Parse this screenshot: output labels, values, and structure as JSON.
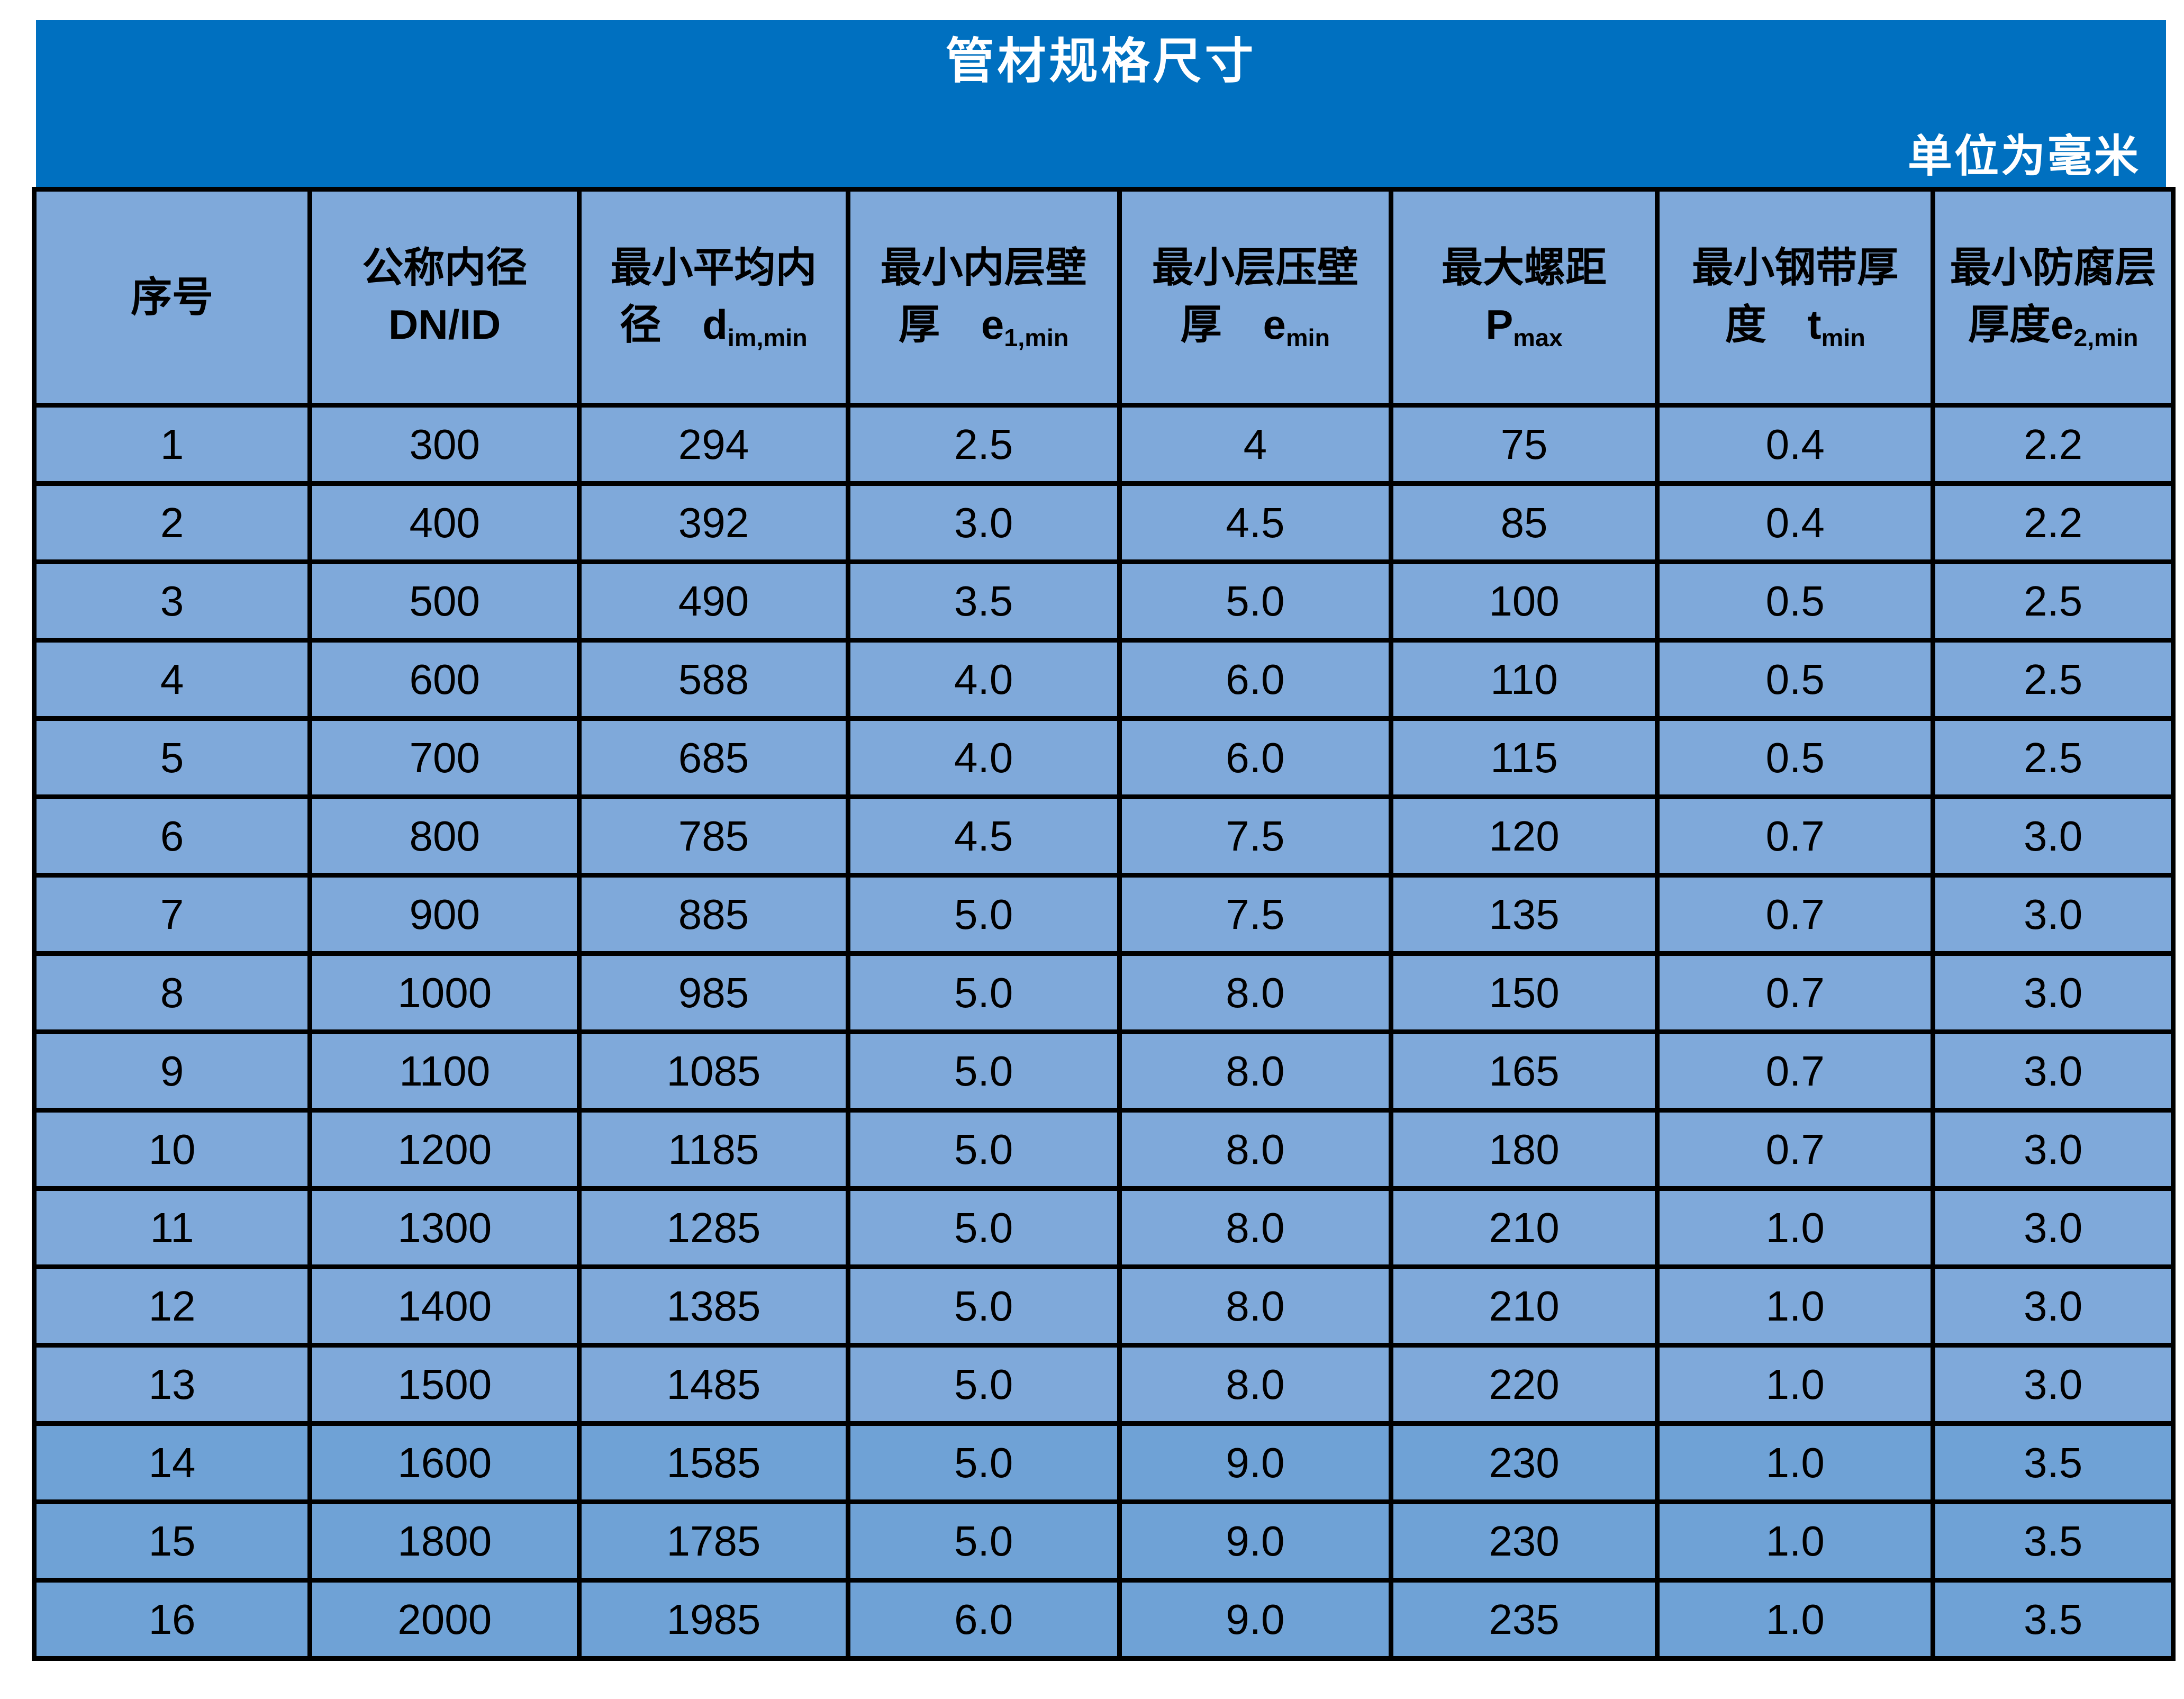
{
  "page": {
    "title": "管材规格尺寸",
    "unit_note": "单位为毫米"
  },
  "colors": {
    "title_bar_bg": "#0070C0",
    "title_text": "#FFFFFF",
    "cell_bg": "#7FA9DA",
    "cell_bg_dark_rows": "#6FA2D6",
    "border": "#000000",
    "cell_text": "#000000"
  },
  "table": {
    "columns": [
      {
        "id": "index",
        "line1": "序号"
      },
      {
        "id": "dn_id",
        "line1": "公称内径",
        "line2": "DN/ID"
      },
      {
        "id": "d_im_min",
        "line1": "最小平均内",
        "line2": "径　",
        "symbol": "d",
        "subscript": "im,min"
      },
      {
        "id": "e1_min",
        "line1": "最小内层壁",
        "line2": "厚　",
        "symbol": "e",
        "subscript": "1,min"
      },
      {
        "id": "e_min",
        "line1": "最小层压壁",
        "line2": "厚　",
        "symbol": "e",
        "subscript": "min"
      },
      {
        "id": "p_max",
        "line1": "最大螺距",
        "line2": "",
        "symbol": "P",
        "subscript": "max"
      },
      {
        "id": "t_min",
        "line1": "最小钢带厚",
        "line2": "度　",
        "symbol": "t",
        "subscript": "min"
      },
      {
        "id": "e2_min",
        "line1": "最小防腐层",
        "line2": "厚度",
        "symbol": "e",
        "subscript": "2,min"
      }
    ],
    "rows": [
      {
        "cells": [
          "1",
          "300",
          "294",
          "2.5",
          "4",
          "75",
          "0.4",
          "2.2"
        ],
        "shade": "normal"
      },
      {
        "cells": [
          "2",
          "400",
          "392",
          "3.0",
          "4.5",
          "85",
          "0.4",
          "2.2"
        ],
        "shade": "normal"
      },
      {
        "cells": [
          "3",
          "500",
          "490",
          "3.5",
          "5.0",
          "100",
          "0.5",
          "2.5"
        ],
        "shade": "normal"
      },
      {
        "cells": [
          "4",
          "600",
          "588",
          "4.0",
          "6.0",
          "110",
          "0.5",
          "2.5"
        ],
        "shade": "normal"
      },
      {
        "cells": [
          "5",
          "700",
          "685",
          "4.0",
          "6.0",
          "115",
          "0.5",
          "2.5"
        ],
        "shade": "normal"
      },
      {
        "cells": [
          "6",
          "800",
          "785",
          "4.5",
          "7.5",
          "120",
          "0.7",
          "3.0"
        ],
        "shade": "normal"
      },
      {
        "cells": [
          "7",
          "900",
          "885",
          "5.0",
          "7.5",
          "135",
          "0.7",
          "3.0"
        ],
        "shade": "normal"
      },
      {
        "cells": [
          "8",
          "1000",
          "985",
          "5.0",
          "8.0",
          "150",
          "0.7",
          "3.0"
        ],
        "shade": "normal"
      },
      {
        "cells": [
          "9",
          "1100",
          "1085",
          "5.0",
          "8.0",
          "165",
          "0.7",
          "3.0"
        ],
        "shade": "normal"
      },
      {
        "cells": [
          "10",
          "1200",
          "1185",
          "5.0",
          "8.0",
          "180",
          "0.7",
          "3.0"
        ],
        "shade": "normal"
      },
      {
        "cells": [
          "11",
          "1300",
          "1285",
          "5.0",
          "8.0",
          "210",
          "1.0",
          "3.0"
        ],
        "shade": "normal"
      },
      {
        "cells": [
          "12",
          "1400",
          "1385",
          "5.0",
          "8.0",
          "210",
          "1.0",
          "3.0"
        ],
        "shade": "normal"
      },
      {
        "cells": [
          "13",
          "1500",
          "1485",
          "5.0",
          "8.0",
          "220",
          "1.0",
          "3.0"
        ],
        "shade": "normal"
      },
      {
        "cells": [
          "14",
          "1600",
          "1585",
          "5.0",
          "9.0",
          "230",
          "1.0",
          "3.5"
        ],
        "shade": "dark"
      },
      {
        "cells": [
          "15",
          "1800",
          "1785",
          "5.0",
          "9.0",
          "230",
          "1.0",
          "3.5"
        ],
        "shade": "dark"
      },
      {
        "cells": [
          "16",
          "2000",
          "1985",
          "6.0",
          "9.0",
          "235",
          "1.0",
          "3.5"
        ],
        "shade": "dark"
      }
    ]
  }
}
